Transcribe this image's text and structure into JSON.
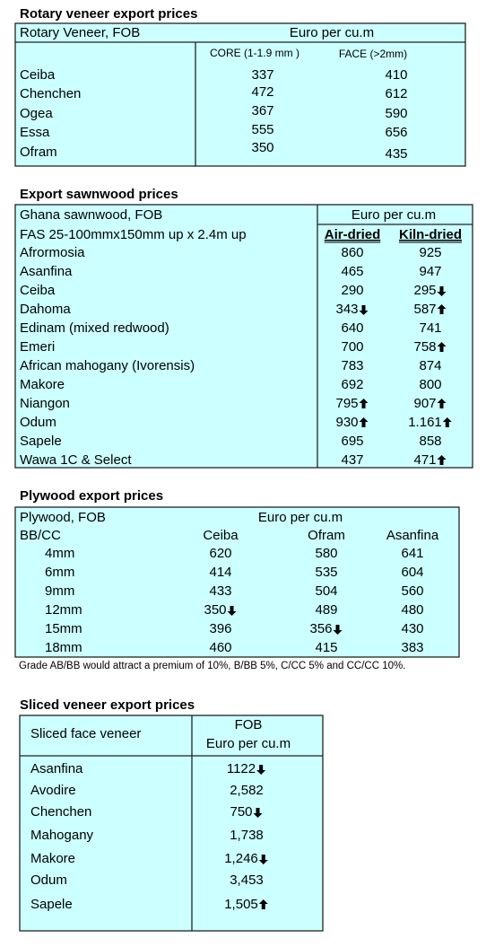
{
  "rotary": {
    "title": "Rotary veneer export prices",
    "header": [
      "Rotary Veneer,  FOB",
      "Euro  per cu.m"
    ],
    "subheader": [
      "CORE (1-1.9 mm )",
      "FACE (>2mm)"
    ],
    "rows": [
      [
        "Ceiba",
        "337",
        "410"
      ],
      [
        "Chenchen",
        "472",
        "612"
      ],
      [
        "Ogea",
        "367",
        "590"
      ],
      [
        "Essa",
        "555",
        "656"
      ],
      [
        "Ofram",
        "350",
        "435"
      ]
    ]
  },
  "sawnwood": {
    "title": "Export sawnwood prices",
    "header": [
      "Ghana sawnwood, FOB",
      "Euro per cu.m"
    ],
    "subheader": [
      "FAS 25-100mmx150mm up x 2.4m up",
      "Air-dried",
      "Kiln-dried"
    ],
    "rows": [
      [
        "Afrormosia",
        "860",
        "925"
      ],
      [
        "Asanfina",
        "465",
        "947"
      ],
      [
        "Ceiba",
        "290",
        "295"
      ],
      [
        "Dahoma",
        "343",
        "587"
      ],
      [
        "Edinam (mixed redwood)",
        "640",
        "741"
      ],
      [
        "Emeri",
        "700",
        "758"
      ],
      [
        "African mahogany (Ivorensis)",
        "783",
        "874"
      ],
      [
        "Makore",
        "692",
        "800"
      ],
      [
        "Niangon",
        "795",
        "907"
      ],
      [
        "Odum",
        "930",
        "1.161"
      ],
      [
        "Sapele",
        "695",
        "858"
      ],
      [
        "Wawa 1C & Select",
        "437",
        "471"
      ]
    ]
  },
  "plywood": {
    "title": "Plywood export prices",
    "header": [
      "Plywood, FOB",
      "Euro per cu.m"
    ],
    "columns": [
      "BB/CC",
      "Ceiba",
      "Ofram",
      "Asanfina"
    ],
    "rows": [
      [
        "4mm",
        "620",
        "580",
        "641"
      ],
      [
        "6mm",
        "414",
        "535",
        "604"
      ],
      [
        "9mm",
        "433",
        "504",
        "560"
      ],
      [
        "12mm",
        "350",
        "489",
        "480"
      ],
      [
        "15mm",
        "396",
        "356",
        "430"
      ],
      [
        "18mm",
        "460",
        "415",
        "383"
      ]
    ],
    "note": "Grade AB/BB would attract a premium of 10%, B/BB 5%, C/CC 5% and CC/CC 10%."
  },
  "sliced": {
    "title": "Sliced veneer export prices",
    "header": [
      "Sliced face veneer",
      "FOB",
      "Euro per cu.m"
    ],
    "rows": [
      [
        "Asanfina",
        "1122"
      ],
      [
        "Avodire",
        "2,582"
      ],
      [
        "Chenchen",
        "750"
      ],
      [
        "Mahogany",
        "1,738"
      ],
      [
        "Makore",
        "1,246"
      ],
      [
        "Odum",
        "3,453"
      ],
      [
        "Sapele",
        "1,505"
      ]
    ]
  }
}
